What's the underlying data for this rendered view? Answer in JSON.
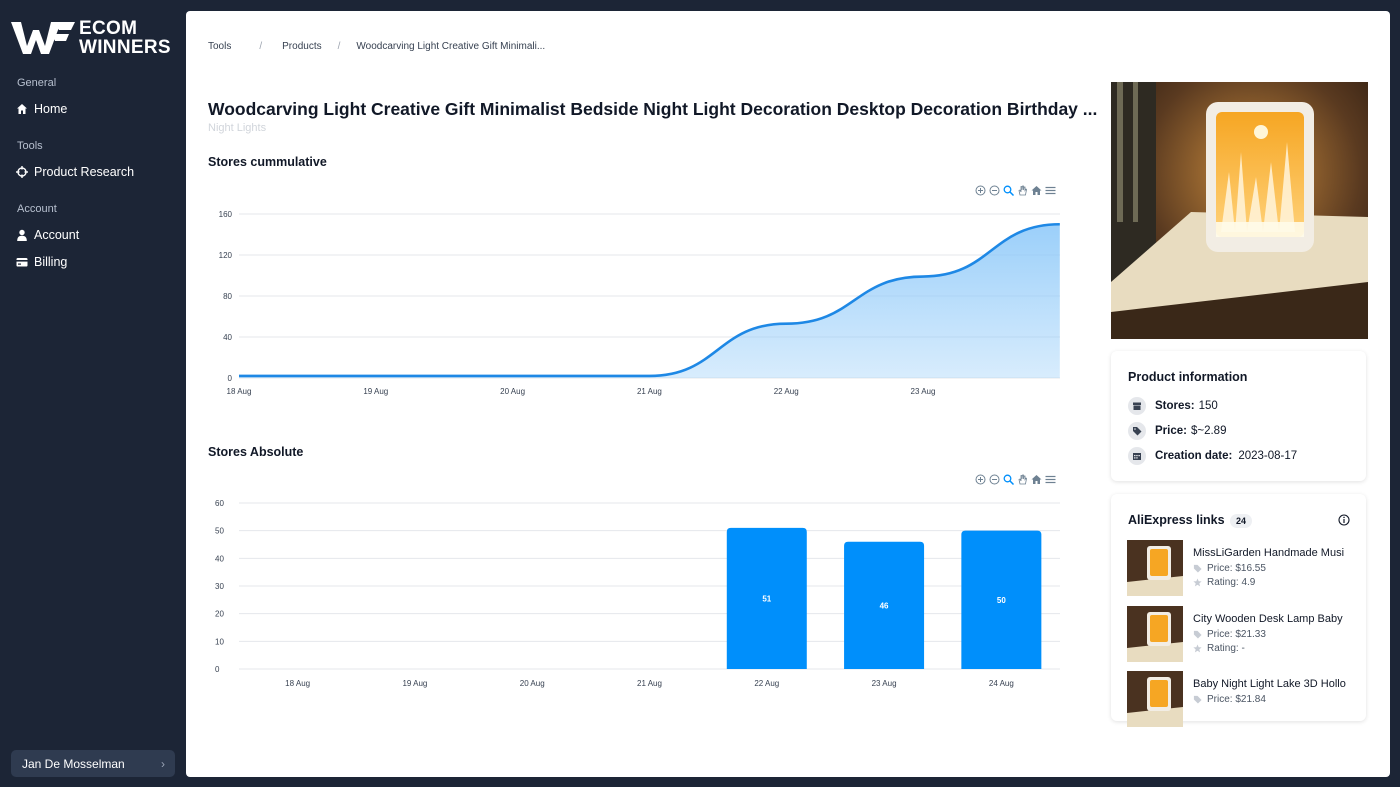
{
  "sidebar": {
    "logo": {
      "line1": "ECOM",
      "line2": "WINNERS"
    },
    "groups": [
      {
        "label": "General",
        "items": [
          {
            "label": "Home",
            "icon": "home-icon"
          }
        ]
      },
      {
        "label": "Tools",
        "items": [
          {
            "label": "Product Research",
            "icon": "crosshair-icon"
          }
        ]
      },
      {
        "label": "Account",
        "items": [
          {
            "label": "Account",
            "icon": "user-icon"
          },
          {
            "label": "Billing",
            "icon": "credit-card-icon"
          }
        ]
      }
    ],
    "user": {
      "name": "Jan De Mosselman",
      "chevron": "›"
    }
  },
  "breadcrumb": {
    "items": [
      "Tools",
      "Products",
      "Woodcarving Light Creative Gift Minimali..."
    ],
    "separator": "/"
  },
  "page": {
    "title": "Woodcarving Light Creative Gift Minimalist Bedside Night Light Decoration Desktop Decoration Birthday ...",
    "subtitle": "Night Lights"
  },
  "charts": {
    "cumulative_title": "Stores cummulative",
    "absolute_title": "Stores Absolute",
    "toolbar_icons": [
      "zoom-in-icon",
      "zoom-out-icon",
      "magnifier-icon",
      "pan-hand-icon",
      "reset-home-icon",
      "menu-icon"
    ]
  },
  "chart_data": [
    {
      "type": "area",
      "title": "Stores cummulative",
      "x": [
        "18 Aug",
        "19 Aug",
        "20 Aug",
        "21 Aug",
        "22 Aug",
        "23 Aug",
        "24 Aug"
      ],
      "series": [
        {
          "values": [
            2,
            2,
            2,
            2,
            53,
            99,
            150
          ]
        }
      ],
      "x_ticks": [
        "18 Aug",
        "19 Aug",
        "20 Aug",
        "21 Aug",
        "22 Aug",
        "23 Aug"
      ],
      "y_ticks": [
        "0",
        "40",
        "80",
        "120",
        "160"
      ],
      "ylim": [
        0,
        160
      ],
      "grid": true,
      "color": "#1e88e5",
      "fill": "#90caf9"
    },
    {
      "type": "bar",
      "title": "Stores Absolute",
      "categories": [
        "18 Aug",
        "19 Aug",
        "20 Aug",
        "21 Aug",
        "22 Aug",
        "23 Aug",
        "24 Aug"
      ],
      "values": [
        0,
        0,
        0,
        0,
        51,
        46,
        50
      ],
      "data_labels": [
        "",
        "",
        "",
        "",
        "51",
        "46",
        "50"
      ],
      "y_ticks": [
        "0",
        "10",
        "20",
        "30",
        "40",
        "50",
        "60"
      ],
      "ylim": [
        0,
        60
      ],
      "grid": true,
      "color": "#008ffb"
    }
  ],
  "product_info": {
    "title": "Product information",
    "stores_label": "Stores:",
    "stores_value": "150",
    "price_label": "Price:",
    "price_value": "$~2.89",
    "created_label": "Creation date:",
    "created_value": "2023-08-17"
  },
  "aliexpress": {
    "title": "AliExpress links",
    "count": "24",
    "items": [
      {
        "name": "MissLiGarden Handmade Musi",
        "price": "Price: $16.55",
        "rating": "Rating: 4.9"
      },
      {
        "name": "City Wooden Desk Lamp Baby",
        "price": "Price: $21.33",
        "rating": "Rating: -"
      },
      {
        "name": "Baby Night Light Lake 3D Hollo",
        "price": "Price: $21.84",
        "rating": ""
      }
    ]
  },
  "colors": {
    "sidebar_bg": "#1c2536",
    "accent": "#008ffb",
    "line": "#1e88e5"
  }
}
